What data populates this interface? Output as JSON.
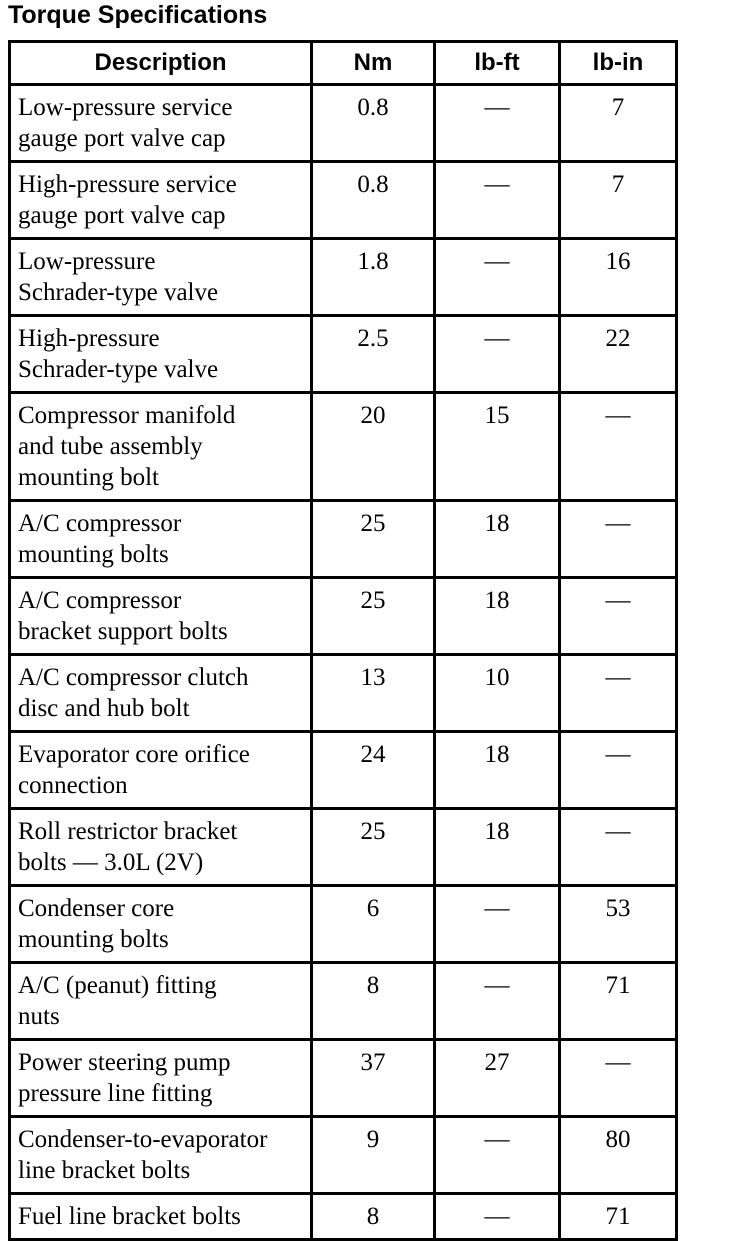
{
  "page_title": "Torque Specifications",
  "table": {
    "columns": [
      "Description",
      "Nm",
      "lb-ft",
      "lb-in"
    ],
    "rows": [
      {
        "description": "Low-pressure service\ngauge port valve cap",
        "nm": "0.8",
        "lb_ft": "—",
        "lb_in": "7"
      },
      {
        "description": "High-pressure service\ngauge port valve cap",
        "nm": "0.8",
        "lb_ft": "—",
        "lb_in": "7"
      },
      {
        "description": "Low-pressure\nSchrader-type valve",
        "nm": "1.8",
        "lb_ft": "—",
        "lb_in": "16"
      },
      {
        "description": "High-pressure\nSchrader-type valve",
        "nm": "2.5",
        "lb_ft": "—",
        "lb_in": "22"
      },
      {
        "description": "Compressor manifold\nand tube assembly\nmounting bolt",
        "nm": "20",
        "lb_ft": "15",
        "lb_in": "—"
      },
      {
        "description": "A/C compressor\nmounting bolts",
        "nm": "25",
        "lb_ft": "18",
        "lb_in": "—"
      },
      {
        "description": "A/C compressor\nbracket support bolts",
        "nm": "25",
        "lb_ft": "18",
        "lb_in": "—"
      },
      {
        "description": "A/C compressor clutch\ndisc and hub bolt",
        "nm": "13",
        "lb_ft": "10",
        "lb_in": "—"
      },
      {
        "description": "Evaporator core orifice\nconnection",
        "nm": "24",
        "lb_ft": "18",
        "lb_in": "—"
      },
      {
        "description": "Roll restrictor bracket\nbolts — 3.0L (2V)",
        "nm": "25",
        "lb_ft": "18",
        "lb_in": "—"
      },
      {
        "description": "Condenser core\nmounting bolts",
        "nm": "6",
        "lb_ft": "—",
        "lb_in": "53"
      },
      {
        "description": "A/C (peanut) fitting\nnuts",
        "nm": "8",
        "lb_ft": "—",
        "lb_in": "71"
      },
      {
        "description": "Power steering pump\npressure line fitting",
        "nm": "37",
        "lb_ft": "27",
        "lb_in": "—"
      },
      {
        "description": "Condenser-to-evaporator\nline bracket bolts",
        "nm": "9",
        "lb_ft": "—",
        "lb_in": "80"
      },
      {
        "description": "Fuel line bracket bolts",
        "nm": "8",
        "lb_ft": "—",
        "lb_in": "71"
      }
    ]
  }
}
